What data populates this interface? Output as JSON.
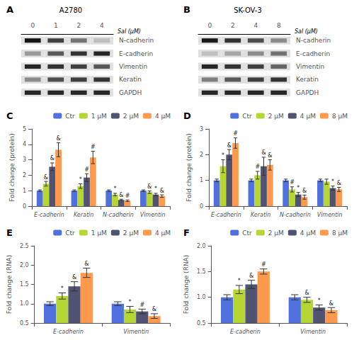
{
  "chart_data": [
    {
      "type": "blot",
      "panel": "A",
      "title": "A2780",
      "xlabel": "Sal (μM)",
      "categories": [
        "0",
        "1",
        "2",
        "4"
      ],
      "series": [
        {
          "name": "N-cadherin",
          "values": [
            0.08,
            0.25,
            0.45,
            0.75
          ]
        },
        {
          "name": "E-cadherin",
          "values": [
            0.6,
            0.35,
            0.2,
            0.15
          ]
        },
        {
          "name": "Vimentin",
          "values": [
            0.15,
            0.2,
            0.25,
            0.35
          ]
        },
        {
          "name": "Keratin",
          "values": [
            0.55,
            0.3,
            0.25,
            0.2
          ]
        },
        {
          "name": "GAPDH",
          "values": [
            0.15,
            0.15,
            0.15,
            0.15
          ]
        }
      ]
    },
    {
      "type": "blot",
      "panel": "B",
      "title": "SK-OV-3",
      "xlabel": "Sal (μM)",
      "categories": [
        "0",
        "2",
        "4",
        "8"
      ],
      "series": [
        {
          "name": "N-cadherin",
          "values": [
            0.1,
            0.2,
            0.3,
            0.55
          ]
        },
        {
          "name": "E-cadherin",
          "values": [
            0.75,
            0.65,
            0.55,
            0.45
          ]
        },
        {
          "name": "Vimentin",
          "values": [
            0.15,
            0.2,
            0.25,
            0.4
          ]
        },
        {
          "name": "Keratin",
          "values": [
            0.5,
            0.35,
            0.25,
            0.2
          ]
        },
        {
          "name": "GAPDH",
          "values": [
            0.15,
            0.15,
            0.15,
            0.15
          ]
        }
      ]
    },
    {
      "type": "bar",
      "panel": "C",
      "ylabel": "Fold change (protein)",
      "ylim": [
        0,
        5
      ],
      "yticks": [
        0,
        1,
        2,
        3,
        4,
        5
      ],
      "grid": false,
      "legend": "upper right",
      "categories": [
        "E-cadherin",
        "Keratin",
        "N-cadherin",
        "Vimentin"
      ],
      "series": [
        {
          "name": "Ctr",
          "values": [
            1.0,
            1.0,
            1.0,
            1.0
          ],
          "errors": [
            0.05,
            0.05,
            0.05,
            0.05
          ],
          "annotations": [
            null,
            null,
            null,
            null
          ]
        },
        {
          "name": "1 μM",
          "values": [
            1.45,
            1.3,
            0.75,
            0.9
          ],
          "errors": [
            0.15,
            0.15,
            0.08,
            0.08
          ],
          "annotations": [
            "&",
            "*",
            "*",
            "&"
          ]
        },
        {
          "name": "2 μM",
          "values": [
            2.55,
            1.85,
            0.4,
            0.75
          ],
          "errors": [
            0.25,
            0.25,
            0.05,
            0.08
          ],
          "annotations": [
            "&",
            "#",
            "&",
            "*"
          ]
        },
        {
          "name": "4 μM",
          "values": [
            3.65,
            3.15,
            0.35,
            0.65
          ],
          "errors": [
            0.45,
            0.4,
            0.05,
            0.08
          ],
          "annotations": [
            "&",
            "#",
            "#",
            "&"
          ]
        }
      ]
    },
    {
      "type": "bar",
      "panel": "D",
      "ylabel": "Fold change (protein)",
      "ylim": [
        0,
        3
      ],
      "yticks": [
        0,
        1,
        2,
        3
      ],
      "grid": false,
      "legend": "upper right",
      "categories": [
        "E-cadherin",
        "Keratin",
        "N-cadherin",
        "Vimentin"
      ],
      "series": [
        {
          "name": "Ctr",
          "values": [
            1.0,
            1.0,
            1.0,
            1.0
          ],
          "errors": [
            0.05,
            0.05,
            0.05,
            0.05
          ],
          "annotations": [
            null,
            null,
            null,
            null
          ]
        },
        {
          "name": "2 μM",
          "values": [
            1.55,
            1.2,
            0.65,
            0.95
          ],
          "errors": [
            0.25,
            0.15,
            0.1,
            0.1
          ],
          "annotations": [
            "*",
            "#",
            "#",
            null
          ]
        },
        {
          "name": "4 μM",
          "values": [
            2.0,
            1.55,
            0.45,
            0.7
          ],
          "errors": [
            0.2,
            0.35,
            0.08,
            0.08
          ],
          "annotations": [
            "&",
            "&",
            "*",
            "*"
          ]
        },
        {
          "name": "8 μM",
          "values": [
            2.45,
            1.6,
            0.35,
            0.65
          ],
          "errors": [
            0.2,
            0.2,
            0.08,
            0.08
          ],
          "annotations": [
            "#",
            "&",
            "&",
            "&"
          ]
        }
      ]
    },
    {
      "type": "bar",
      "panel": "E",
      "ylabel": "Fold change (RNA)",
      "ylim": [
        0.5,
        2.5
      ],
      "yticks": [
        0.5,
        {
          "value": 1,
          "label": "1.0"
        },
        1.5,
        {
          "value": 2,
          "label": "2.0"
        },
        2.5
      ],
      "grid": false,
      "legend": "upper right",
      "categories": [
        "E-cadherin",
        "Vimentin"
      ],
      "series": [
        {
          "name": "Ctr",
          "values": [
            1.0,
            1.0
          ],
          "errors": [
            0.05,
            0.05
          ],
          "annotations": [
            null,
            null
          ]
        },
        {
          "name": "1 μM",
          "values": [
            1.2,
            0.85
          ],
          "errors": [
            0.08,
            0.08
          ],
          "annotations": [
            "*",
            "*"
          ]
        },
        {
          "name": "2 μM",
          "values": [
            1.45,
            0.8
          ],
          "errors": [
            0.12,
            0.06
          ],
          "annotations": [
            "&",
            "#"
          ]
        },
        {
          "name": "4 μM",
          "values": [
            1.8,
            0.68
          ],
          "errors": [
            0.12,
            0.06
          ],
          "annotations": [
            "&",
            "&"
          ]
        }
      ]
    },
    {
      "type": "bar",
      "panel": "F",
      "ylabel": "Fold change (RNA)",
      "ylim": [
        0.5,
        2.0
      ],
      "yticks": [
        0.5,
        {
          "value": 1,
          "label": "1.0"
        },
        1.5,
        {
          "value": 2,
          "label": "2.0"
        }
      ],
      "grid": false,
      "legend": "upper right",
      "categories": [
        "E-cadherin",
        "Vimentin"
      ],
      "series": [
        {
          "name": "Ctr",
          "values": [
            1.0,
            1.0
          ],
          "errors": [
            0.05,
            0.05
          ],
          "annotations": [
            null,
            null
          ]
        },
        {
          "name": "2 μM",
          "values": [
            1.15,
            0.95
          ],
          "errors": [
            0.08,
            0.05
          ],
          "annotations": [
            "*",
            "&"
          ]
        },
        {
          "name": "4 μM",
          "values": [
            1.25,
            0.8
          ],
          "errors": [
            0.08,
            0.05
          ],
          "annotations": [
            "&",
            "*"
          ]
        },
        {
          "name": "8 μM",
          "values": [
            1.5,
            0.75
          ],
          "errors": [
            0.05,
            0.05
          ],
          "annotations": [
            "#",
            "&"
          ]
        }
      ]
    }
  ]
}
